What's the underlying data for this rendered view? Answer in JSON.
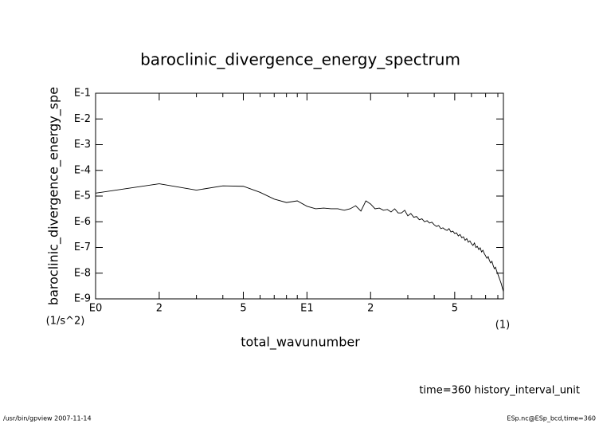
{
  "chart_data": {
    "type": "line",
    "title": "baroclinic_divergence_energy_spectrum",
    "xlabel": "total_wavunumber",
    "ylabel": "baroclinic_divergence_energy_spe",
    "xunit": "(1)",
    "yunit": "(1/s^2)",
    "note": "time=360 history_interval_unit",
    "footer_left": "/usr/bin/gpview   2007-11-14",
    "footer_right": "ESp.nc@ESp_bcd,time=360",
    "xscale": "log",
    "yscale": "log",
    "xlim": [
      1,
      85
    ],
    "ylim": [
      1e-09,
      0.1
    ],
    "xticks": [
      {
        "value": 1,
        "label": "E0"
      },
      2,
      5,
      {
        "value": 10,
        "label": "E1"
      },
      {
        "value": 20,
        "label": "2"
      },
      {
        "value": 50,
        "label": "5"
      }
    ],
    "xminorticks": [
      3,
      4,
      6,
      7,
      8,
      9,
      30,
      40,
      60,
      70,
      80
    ],
    "yticks": [
      {
        "value": 0.1,
        "label": "E-1"
      },
      {
        "value": 0.01,
        "label": "E-2"
      },
      {
        "value": 0.001,
        "label": "E-3"
      },
      {
        "value": 0.0001,
        "label": "E-4"
      },
      {
        "value": 1e-05,
        "label": "E-5"
      },
      {
        "value": 1e-06,
        "label": "E-6"
      },
      {
        "value": 1e-07,
        "label": "E-7"
      },
      {
        "value": 1e-08,
        "label": "E-8"
      },
      {
        "value": 1e-09,
        "label": "E-9"
      }
    ],
    "color": "#000000",
    "x": [
      1,
      2,
      3,
      4,
      5,
      6,
      7,
      8,
      9,
      10,
      11,
      12,
      13,
      14,
      15,
      16,
      17,
      18,
      19,
      20,
      21,
      22,
      23,
      24,
      25,
      26,
      27,
      28,
      29,
      30,
      31,
      32,
      33,
      34,
      35,
      36,
      37,
      38,
      39,
      40,
      41,
      42,
      43,
      44,
      45,
      46,
      47,
      48,
      49,
      50,
      51,
      52,
      53,
      54,
      55,
      56,
      57,
      58,
      59,
      60,
      61,
      62,
      63,
      64,
      65,
      66,
      67,
      68,
      69,
      70,
      71,
      72,
      73,
      74,
      75,
      76,
      77,
      78,
      79,
      80,
      81,
      82,
      83,
      84,
      85
    ],
    "values": [
      1.3e-05,
      3e-05,
      1.7e-05,
      2.5e-05,
      2.4e-05,
      1.4e-05,
      7.6e-06,
      5.6e-06,
      6.5e-06,
      4e-06,
      3.2e-06,
      3.4e-06,
      3.2e-06,
      3.2e-06,
      2.8e-06,
      3.2e-06,
      4.2e-06,
      2.6e-06,
      6.5e-06,
      4.9e-06,
      3.2e-06,
      3.4e-06,
      2.8e-06,
      3e-06,
      2.4e-06,
      3.2e-06,
      2.2e-06,
      2.2e-06,
      2.8e-06,
      1.7e-06,
      2.1e-06,
      1.5e-06,
      1.6e-06,
      1.2e-06,
      1.3e-06,
      1e-06,
      1.1e-06,
      8.9e-07,
      9.6e-07,
      7.6e-07,
      6.6e-07,
      7.1e-07,
      5.4e-07,
      5.8e-07,
      5e-07,
      4.6e-07,
      5.4e-07,
      4e-07,
      4.3e-07,
      3.5e-07,
      3.7e-07,
      2.8e-07,
      3.2e-07,
      2.4e-07,
      2.6e-07,
      1.9e-07,
      2.2e-07,
      1.6e-07,
      1.8e-07,
      1.4e-07,
      1.2e-07,
      1.5e-07,
      1e-07,
      1.1e-07,
      8.3e-08,
      9.7e-08,
      6.7e-08,
      7.8e-08,
      5.8e-08,
      4.7e-08,
      3.8e-08,
      4.4e-08,
      3.1e-08,
      2.5e-08,
      2.9e-08,
      2e-08,
      1.5e-08,
      1.7e-08,
      1.2e-08,
      9.2e-09,
      6.9e-09,
      5.2e-09,
      3.9e-09,
      2.7e-09,
      1.9e-09
    ]
  }
}
